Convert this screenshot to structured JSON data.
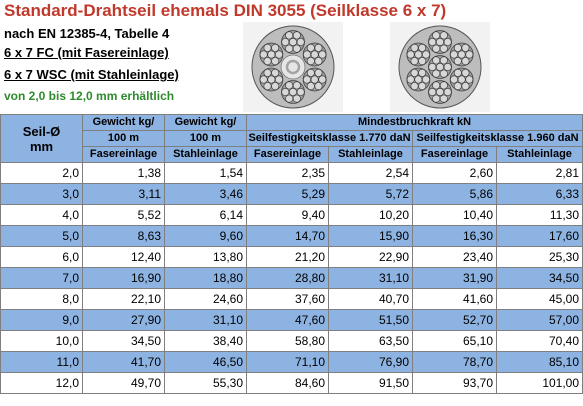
{
  "heading": {
    "title": "Standard-Drahtseil ehemals DIN 3055 (Seilklasse 6 x 7)",
    "line1": "nach EN 12385-4, Tabelle 4",
    "line2": "6 x 7 FC (mit Fasereinlage)",
    "line3": "6 x 7 WSC (mit Stahleinlage)",
    "availability": "von 2,0 bis 12,0 mm erhältlich"
  },
  "table": {
    "col_seil": "Seil-Ø",
    "col_seil_unit": "mm",
    "col_gewicht1_a": "Gewicht kg/",
    "col_gewicht1_b": "100 m",
    "col_gewicht1_c": "Fasereinlage",
    "col_gewicht2_a": "Gewicht kg/",
    "col_gewicht2_b": "100 m",
    "col_gewicht2_c": "Stahleinlage",
    "col_mbk": "Mindestbruchkraft kN",
    "col_klasse1": "Seilfestigkeitsklasse 1.770 daN",
    "col_klasse2": "Seilfestigkeitsklasse 1.960 daN",
    "sub_faser1": "Fasereinlage",
    "sub_stahl1": "Stahleinlage",
    "sub_faser2": "Fasereinlage",
    "sub_stahl2": "Stahleinlage",
    "rows": [
      [
        "2,0",
        "1,38",
        "1,54",
        "2,35",
        "2,54",
        "2,60",
        "2,81"
      ],
      [
        "3,0",
        "3,11",
        "3,46",
        "5,29",
        "5,72",
        "5,86",
        "6,33"
      ],
      [
        "4,0",
        "5,52",
        "6,14",
        "9,40",
        "10,20",
        "10,40",
        "11,30"
      ],
      [
        "5,0",
        "8,63",
        "9,60",
        "14,70",
        "15,90",
        "16,30",
        "17,60"
      ],
      [
        "6,0",
        "12,40",
        "13,80",
        "21,20",
        "22,90",
        "23,40",
        "25,30"
      ],
      [
        "7,0",
        "16,90",
        "18,80",
        "28,80",
        "31,10",
        "31,90",
        "34,50"
      ],
      [
        "8,0",
        "22,10",
        "24,60",
        "37,60",
        "40,70",
        "41,60",
        "45,00"
      ],
      [
        "9,0",
        "27,90",
        "31,10",
        "47,60",
        "51,50",
        "52,70",
        "57,00"
      ],
      [
        "10,0",
        "34,50",
        "38,40",
        "58,80",
        "63,50",
        "65,10",
        "70,40"
      ],
      [
        "11,0",
        "41,70",
        "46,50",
        "71,10",
        "76,90",
        "78,70",
        "85,10"
      ],
      [
        "12,0",
        "49,70",
        "55,30",
        "84,60",
        "91,50",
        "93,70",
        "101,00"
      ]
    ]
  },
  "colors": {
    "title": "#c0392b",
    "note": "#2e8b2e",
    "header_fill": "#8db3e2"
  },
  "images": [
    "rope-cross-section-fiber-core",
    "rope-cross-section-steel-core"
  ]
}
